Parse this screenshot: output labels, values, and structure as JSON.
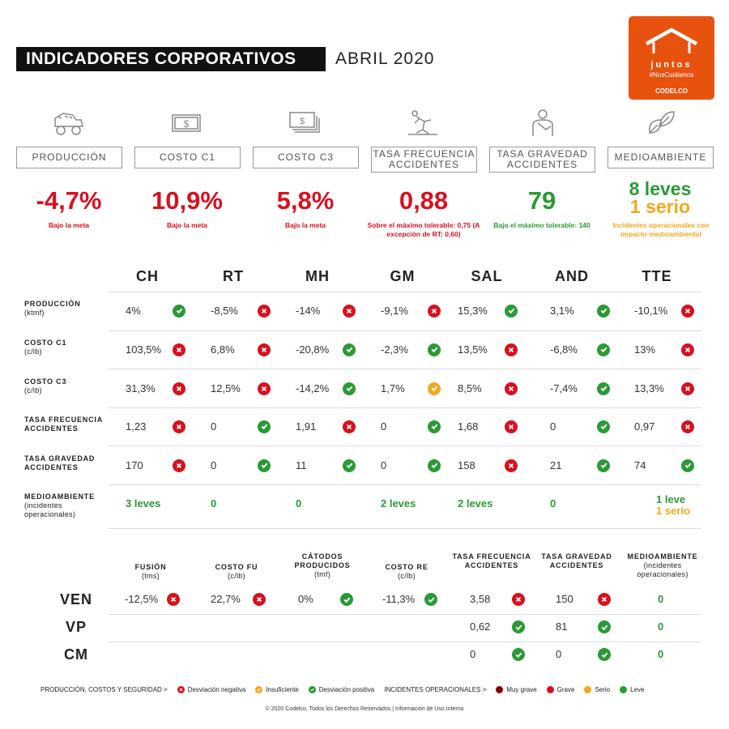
{
  "header": {
    "title": "INDICADORES CORPORATIVOS",
    "month": "ABRIL 2020"
  },
  "logo": {
    "line1": "juntos",
    "line2": "#NosCuidamos",
    "line3": "CODELCO",
    "color": "#e8520f"
  },
  "kpis": [
    {
      "icon": "mining-truck-icon",
      "label": "PRODUCCIÓN",
      "value": "-4,7%",
      "note": "Bajo la meta",
      "tone": "red"
    },
    {
      "icon": "banknote-icon",
      "label": "COSTO C1",
      "value": "10,9%",
      "note": "Bajo la meta",
      "tone": "red"
    },
    {
      "icon": "banknotes-stack-icon",
      "label": "COSTO C3",
      "value": "5,8%",
      "note": "Bajo la meta",
      "tone": "red"
    },
    {
      "icon": "falling-person-icon",
      "label": "TASA FRECUENCIA ACCIDENTES",
      "value": "0,88",
      "note": "Sobre el máximo tolerable: 0,75 (A excepción de RT: 0,60)",
      "tone": "red"
    },
    {
      "icon": "injured-person-icon",
      "label": "TASA GRAVEDAD ACCIDENTES",
      "value": "79",
      "note": "Bajo el máximo tolerable: 140",
      "tone": "green"
    },
    {
      "icon": "leaves-icon",
      "label": "MEDIOAMBIENTE",
      "value": "8 leves",
      "value2": "1 serio",
      "note": "Incidentes operacionales con impacto medioambiental",
      "tone": "green"
    }
  ],
  "divisions": [
    "CH",
    "RT",
    "MH",
    "GM",
    "SAL",
    "AND",
    "TTE"
  ],
  "rows": [
    {
      "label": "PRODUCCIÓN",
      "sub": "(ktmf)",
      "cells": [
        {
          "v": "4%",
          "s": "good"
        },
        {
          "v": "-8,5%",
          "s": "bad"
        },
        {
          "v": "-14%",
          "s": "bad"
        },
        {
          "v": "-9,1%",
          "s": "bad"
        },
        {
          "v": "15,3%",
          "s": "good"
        },
        {
          "v": "3,1%",
          "s": "good"
        },
        {
          "v": "-10,1%",
          "s": "bad"
        }
      ]
    },
    {
      "label": "COSTO C1",
      "sub": "(c/lb)",
      "cells": [
        {
          "v": "103,5%",
          "s": "bad"
        },
        {
          "v": "6,8%",
          "s": "bad"
        },
        {
          "v": "-20,8%",
          "s": "good"
        },
        {
          "v": "-2,3%",
          "s": "good"
        },
        {
          "v": "13,5%",
          "s": "bad"
        },
        {
          "v": "-6,8%",
          "s": "good"
        },
        {
          "v": "13%",
          "s": "bad"
        }
      ]
    },
    {
      "label": "COSTO C3",
      "sub": "(c/lb)",
      "cells": [
        {
          "v": "31,3%",
          "s": "bad"
        },
        {
          "v": "12,5%",
          "s": "bad"
        },
        {
          "v": "-14,2%",
          "s": "good"
        },
        {
          "v": "1,7%",
          "s": "warn"
        },
        {
          "v": "8,5%",
          "s": "bad"
        },
        {
          "v": "-7,4%",
          "s": "good"
        },
        {
          "v": "13,3%",
          "s": "bad"
        }
      ]
    },
    {
      "label": "TASA FRECUENCIA ACCIDENTES",
      "sub": "",
      "cells": [
        {
          "v": "1,23",
          "s": "bad"
        },
        {
          "v": "0",
          "s": "good"
        },
        {
          "v": "1,91",
          "s": "bad"
        },
        {
          "v": "0",
          "s": "good"
        },
        {
          "v": "1,68",
          "s": "bad"
        },
        {
          "v": "0",
          "s": "good"
        },
        {
          "v": "0,97",
          "s": "bad"
        }
      ]
    },
    {
      "label": "TASA GRAVEDAD ACCIDENTES",
      "sub": "",
      "cells": [
        {
          "v": "170",
          "s": "bad"
        },
        {
          "v": "0",
          "s": "good"
        },
        {
          "v": "11",
          "s": "good"
        },
        {
          "v": "0",
          "s": "good"
        },
        {
          "v": "158",
          "s": "bad"
        },
        {
          "v": "21",
          "s": "good"
        },
        {
          "v": "74",
          "s": "good"
        }
      ]
    },
    {
      "label": "MEDIOAMBIENTE",
      "sub": "(incidentes operacionales)",
      "env": true,
      "cells": [
        {
          "v": "3 leves"
        },
        {
          "v": "0"
        },
        {
          "v": "0"
        },
        {
          "v": "2 leves"
        },
        {
          "v": "2 leves"
        },
        {
          "v": "0"
        },
        {
          "v": "1 leve",
          "v2": "1 serio"
        }
      ]
    }
  ],
  "bottom": {
    "headers": [
      {
        "label": "FUSIÓN",
        "sub": "(tms)"
      },
      {
        "label": "COSTO FU",
        "sub": "(c/lb)"
      },
      {
        "label": "CÁTODOS PRODUCIDOS",
        "sub": "(tmf)"
      },
      {
        "label": "COSTO RE",
        "sub": "(c/lb)"
      },
      {
        "label": "TASA FRECUENCIA ACCIDENTES",
        "sub": ""
      },
      {
        "label": "TASA GRAVEDAD ACCIDENTES",
        "sub": ""
      },
      {
        "label": "MEDIOAMBIENTE",
        "sub": "(incidentes operacionales)"
      }
    ],
    "rows": [
      {
        "label": "VEN",
        "cells": [
          {
            "v": "-12,5%",
            "s": "bad"
          },
          {
            "v": "22,7%",
            "s": "bad"
          },
          {
            "v": "0%",
            "s": "good"
          },
          {
            "v": "-11,3%",
            "s": "good"
          },
          {
            "v": "3,58",
            "s": "bad"
          },
          {
            "v": "150",
            "s": "bad"
          },
          {
            "v": "0",
            "env": true
          }
        ]
      },
      {
        "label": "VP",
        "cells": [
          null,
          null,
          null,
          null,
          {
            "v": "0,62",
            "s": "good"
          },
          {
            "v": "81",
            "s": "good"
          },
          {
            "v": "0",
            "env": true
          }
        ]
      },
      {
        "label": "CM",
        "cells": [
          null,
          null,
          null,
          null,
          {
            "v": "0",
            "s": "good"
          },
          {
            "v": "0",
            "s": "good"
          },
          {
            "v": "0",
            "env": true
          }
        ]
      }
    ]
  },
  "legend": {
    "group1": "PRODUCCIÓN, COSTOS Y SEGURIDAD >",
    "neg": "Desviación negativa",
    "ins": "Insuficiente",
    "pos": "Desviación positiva",
    "group2": "INCIDENTES OPERACIONALES  >",
    "muy_grave": "Muy grave",
    "grave": "Grave",
    "serio": "Serio",
    "leve": "Leve",
    "colors": {
      "muy_grave": "#8b0000",
      "grave": "#d8101f",
      "serio": "#f2a81d",
      "leve": "#2a9a35"
    }
  },
  "footer": "© 2020 Codelco. Todos los Derechos Reservados | Información de Uso Interno"
}
